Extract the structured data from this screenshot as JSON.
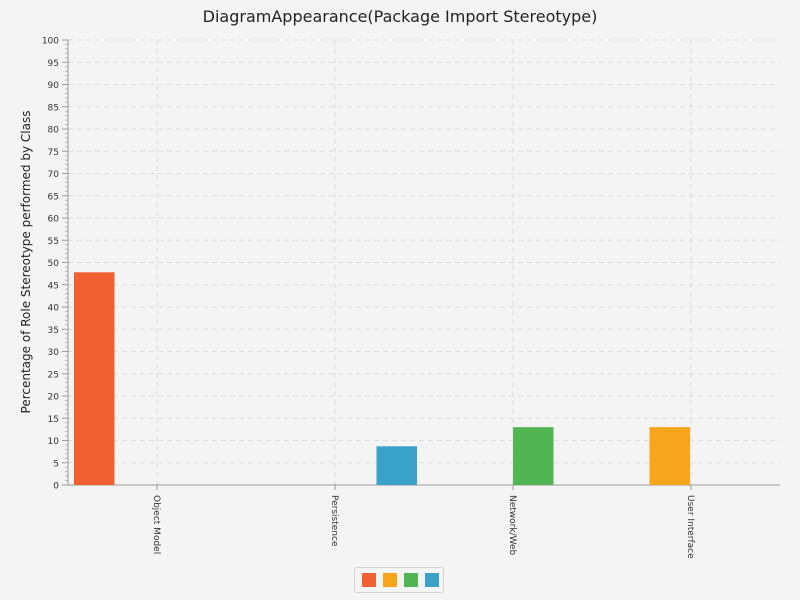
{
  "chart_data": {
    "type": "bar",
    "title": "DiagramAppearance(Package Import Stereotype)",
    "xlabel": "",
    "ylabel": "Percentage of Role Stereotype performed by Class",
    "ylim": [
      0,
      100
    ],
    "ytick_step": 5,
    "categories": [
      "Object Model",
      "Persistence",
      "Network/Web",
      "User Interface"
    ],
    "series": [
      {
        "color": "#f16030",
        "values": [
          47.8,
          0,
          0,
          0
        ]
      },
      {
        "color": "#f7a51c",
        "values": [
          0,
          0,
          0,
          13.0
        ]
      },
      {
        "color": "#52b553",
        "values": [
          0,
          0,
          13.0,
          0
        ]
      },
      {
        "color": "#3aa1c9",
        "values": [
          0,
          8.7,
          0,
          0
        ]
      }
    ],
    "grid": true,
    "legend_position": "bottom"
  }
}
